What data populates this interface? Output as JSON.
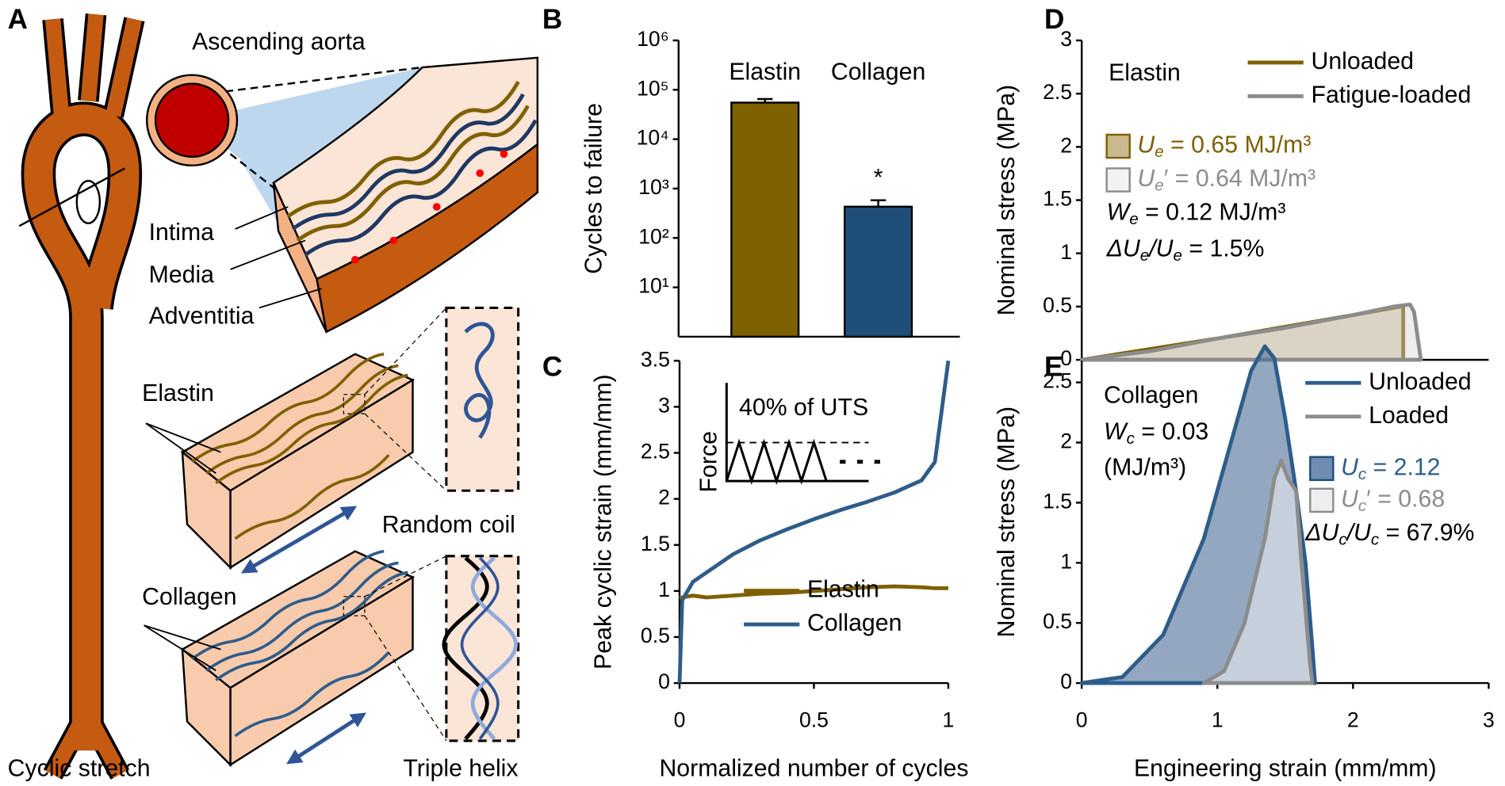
{
  "panel_labels": [
    "A",
    "B",
    "C",
    "D",
    "E"
  ],
  "diagram": {
    "ascending_aorta": "Ascending aorta",
    "intima": "Intima",
    "media": "Media",
    "adventitia": "Adventitia",
    "elastin": "Elastin",
    "random_coil": "Random coil",
    "collagen": "Collagen",
    "triple_helix": "Triple helix",
    "cyclic_stretch": "Cyclic stretch"
  },
  "chart_data": [
    {
      "type": "bar",
      "log_y": true,
      "ylabel": "Cycles to failure",
      "categories": [
        "Elastin",
        "Collagen"
      ],
      "values": [
        55000,
        430
      ],
      "errors": [
        10000,
        150
      ],
      "colors": [
        "#7f6000",
        "#1f4e79"
      ],
      "annotation": "*",
      "ylim": [
        1,
        1000000
      ],
      "yticks": [
        {
          "value": 10,
          "label": "10¹"
        },
        {
          "value": 100,
          "label": "10²"
        },
        {
          "value": 1000,
          "label": "10³"
        },
        {
          "value": 10000,
          "label": "10⁴"
        },
        {
          "value": 100000,
          "label": "10⁵"
        },
        {
          "value": 1000000,
          "label": "10⁶"
        }
      ]
    },
    {
      "type": "line",
      "xlabel": "Normalized number of cycles",
      "ylabel": "Peak cyclic strain (mm/mm)",
      "x": [
        0,
        0.01,
        0.05,
        0.1,
        0.2,
        0.3,
        0.4,
        0.5,
        0.6,
        0.7,
        0.8,
        0.9,
        0.95,
        1
      ],
      "series": [
        {
          "name": "Elastin",
          "color": "#7f6000",
          "values": [
            0.92,
            0.93,
            0.95,
            0.93,
            0.95,
            0.97,
            0.98,
            1.0,
            1.02,
            1.04,
            1.05,
            1.04,
            1.03,
            1.03
          ]
        },
        {
          "name": "Collagen",
          "color": "#2e5d8a",
          "values": [
            0,
            0.9,
            1.1,
            1.2,
            1.4,
            1.55,
            1.67,
            1.78,
            1.88,
            1.97,
            2.07,
            2.2,
            2.4,
            3.5
          ]
        }
      ],
      "xlim": [
        0,
        1
      ],
      "xticks": [
        0,
        0.5,
        1
      ],
      "ylim": [
        0,
        3.5
      ],
      "yticks": [
        0,
        0.5,
        1,
        1.5,
        2,
        2.5,
        3,
        3.5
      ],
      "legend": "lower right",
      "inset": {
        "axis_label": "Force",
        "level_label": "40% of UTS"
      }
    },
    {
      "type": "area",
      "ylabel": "Nominal stress (MPa)",
      "series": [
        {
          "name": "Unloaded",
          "color": "#7f6000",
          "fill": "rgba(191,165,110,0.45)",
          "x": [
            0,
            1,
            2,
            2.35,
            2.37,
            2.37
          ],
          "values": [
            0,
            0.2,
            0.42,
            0.5,
            0.5,
            0
          ]
        },
        {
          "name": "Fatigue-loaded",
          "color": "#8c8c8c",
          "fill": "rgba(210,210,210,0.4)",
          "x": [
            0,
            0.5,
            1,
            1.5,
            2,
            2.3,
            2.42,
            2.45,
            2.5
          ],
          "values": [
            0,
            0.08,
            0.2,
            0.3,
            0.42,
            0.5,
            0.52,
            0.45,
            0
          ]
        }
      ],
      "xlim": [
        0,
        3
      ],
      "ylim": [
        0,
        3
      ],
      "yticks": [
        0,
        0.5,
        1,
        1.5,
        2,
        2.5,
        3
      ],
      "legend": "upper right",
      "label": "Elastin",
      "label_color": "#7f6000",
      "energies": [
        {
          "parts": [
            "U",
            "e",
            " = 0.65 MJ/m³"
          ],
          "color": "#7f6000",
          "fill": "#c9b98f",
          "stroke": "#7f6000"
        },
        {
          "parts": [
            "U",
            "e",
            "′ = 0.64 MJ/m³"
          ],
          "color": "#8c8c8c",
          "fill": "#f2f2f2",
          "stroke": "#8c8c8c"
        }
      ],
      "notes": [
        {
          "parts": [
            "W",
            "e",
            " = 0.12 MJ/m³"
          ]
        },
        {
          "parts": [
            "ΔU",
            "e",
            "/U",
            "e",
            " = 1.5%"
          ]
        }
      ]
    },
    {
      "type": "area",
      "xlabel": "Engineering strain (mm/mm)",
      "ylabel": "Nominal stress (MPa)",
      "series": [
        {
          "name": "Unloaded",
          "color": "#2e5d8a",
          "fill": "rgba(75,110,150,0.6)",
          "x": [
            0,
            0.3,
            0.6,
            0.9,
            1.1,
            1.25,
            1.35,
            1.42,
            1.5,
            1.58,
            1.65,
            1.7,
            1.72
          ],
          "values": [
            0,
            0.05,
            0.4,
            1.2,
            2.0,
            2.6,
            2.8,
            2.7,
            2.2,
            1.6,
            1.0,
            0.3,
            0
          ]
        },
        {
          "name": "Loaded",
          "color": "#8c8c8c",
          "fill": "rgba(215,222,230,0.75)",
          "x": [
            0.9,
            1.05,
            1.2,
            1.35,
            1.42,
            1.47,
            1.52,
            1.58,
            1.62,
            1.68,
            1.7
          ],
          "values": [
            0,
            0.1,
            0.5,
            1.2,
            1.7,
            1.85,
            1.7,
            1.6,
            1.0,
            0.2,
            0
          ]
        }
      ],
      "xlim": [
        0,
        3
      ],
      "xticks": [
        0,
        1,
        2,
        3
      ],
      "ylim": [
        0,
        2.68
      ],
      "yticks": [
        0,
        0.5,
        1,
        1.5,
        2,
        2.5
      ],
      "legend": "upper right",
      "label": "Collagen",
      "label_color": "#44546a",
      "energies": [
        {
          "parts": [
            "U",
            "c",
            " = 2.12"
          ],
          "color": "#2e5d8a",
          "fill": "#6f8db0",
          "stroke": "#1f4e79"
        },
        {
          "parts": [
            "U",
            "c",
            "′ = 0.68"
          ],
          "color": "#8c8c8c",
          "fill": "#eeeeee",
          "stroke": "#8c8c8c"
        }
      ],
      "notes": [
        {
          "parts": [
            "W",
            "c",
            " = 0.03"
          ]
        },
        {
          "parts": [
            "(MJ/m³)"
          ]
        },
        {
          "parts": [
            "ΔU",
            "c",
            "/U",
            "c",
            " = 67.9%"
          ]
        }
      ]
    }
  ]
}
